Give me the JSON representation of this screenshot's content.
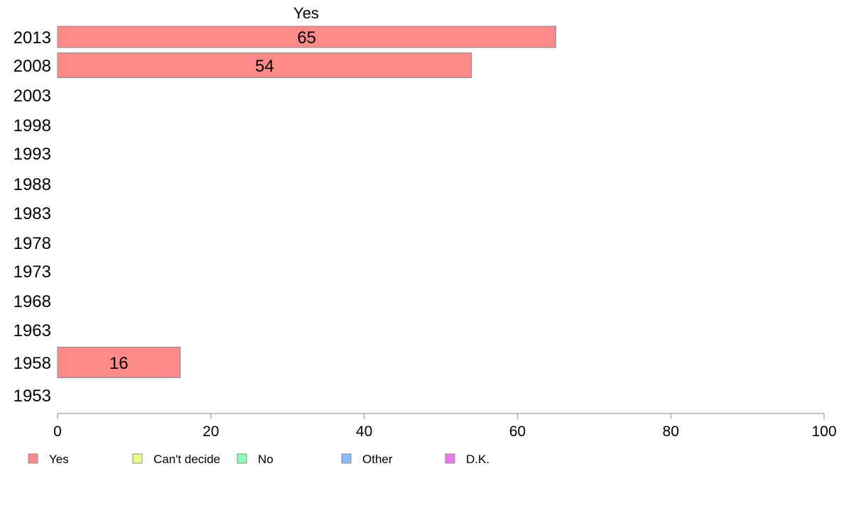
{
  "chart_data": {
    "type": "bar",
    "orientation": "horizontal",
    "title": "Yes",
    "categories": [
      "2013",
      "2008",
      "2003",
      "1998",
      "1993",
      "1988",
      "1983",
      "1978",
      "1973",
      "1968",
      "1963",
      "1958",
      "1953"
    ],
    "series": [
      {
        "name": "Yes",
        "color": "#ff8a8a",
        "values": [
          65,
          54,
          null,
          null,
          null,
          null,
          null,
          null,
          null,
          null,
          null,
          16,
          null
        ]
      }
    ],
    "value_labels": [
      "65",
      "54",
      "",
      "",
      "",
      "",
      "",
      "",
      "",
      "",
      "",
      "16",
      ""
    ],
    "xlim": [
      0,
      100
    ],
    "xticks": [
      "0",
      "20",
      "40",
      "60",
      "80",
      "100"
    ],
    "legend": {
      "placement": "bottom",
      "entries": [
        {
          "label": "Yes",
          "color": "#ff8a8a"
        },
        {
          "label": "Can't decide",
          "color": "#eeff88"
        },
        {
          "label": "No",
          "color": "#88ffbb"
        },
        {
          "label": "Other",
          "color": "#88bbff"
        },
        {
          "label": "D.K.",
          "color": "#ee77ee"
        }
      ]
    },
    "grid": false,
    "bar_border_color": "#888888",
    "axis_color": "#888888"
  }
}
